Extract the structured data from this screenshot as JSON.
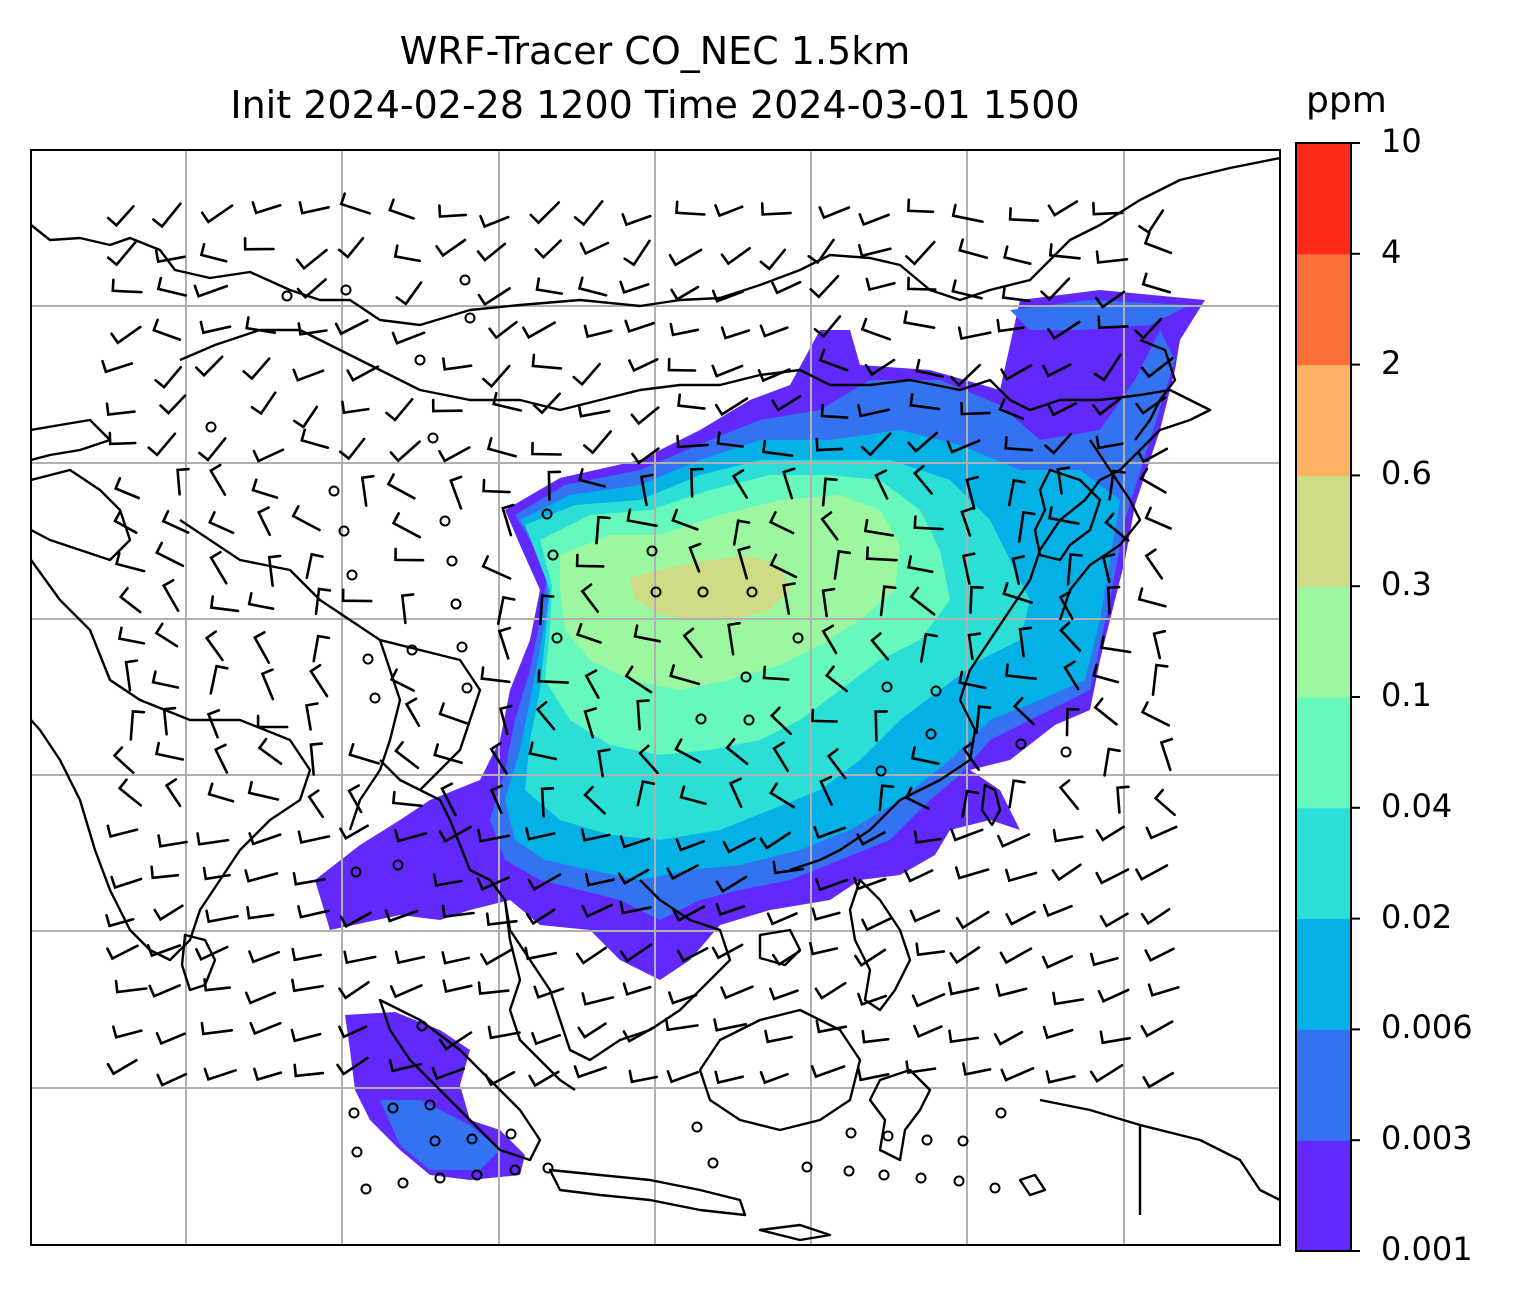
{
  "title_line1": "WRF-Tracer CO_NEC 1.5km",
  "title_line2": "Init 2024-02-28 1200 Time 2024-03-01 1500",
  "colorbar": {
    "unit": "ppm",
    "levels": [
      "0.001",
      "0.003",
      "0.006",
      "0.02",
      "0.04",
      "0.1",
      "0.3",
      "0.6",
      "2",
      "4",
      "10"
    ],
    "colors": [
      "#6129fb",
      "#3373f1",
      "#04b1e7",
      "#2cdfd6",
      "#66f8bc",
      "#9cf7a0",
      "#ceda84",
      "#feb063",
      "#fd6f3a",
      "#ff2a18"
    ]
  },
  "map": {
    "gridlines": true,
    "gridline_color": "#b0b0b0",
    "coastline_color": "#000000",
    "barb_color": "#000000"
  }
}
